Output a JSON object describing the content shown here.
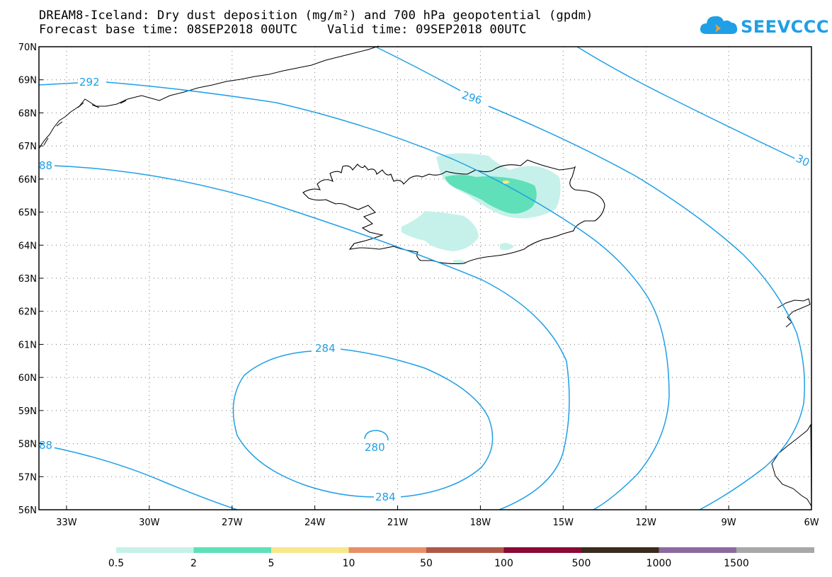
{
  "title": {
    "line1": "DREAM8-Iceland: Dry dust deposition (mg/m²) and 700 hPa geopotential (gpdm)",
    "line2": "Forecast base time: 08SEP2018 00UTC    Valid time: 09SEP2018 00UTC"
  },
  "logo": {
    "text": "SEEVCCC",
    "icon": "cloud-arrow-icon",
    "color": "#1f9fe6"
  },
  "map": {
    "projection": "lat-lon",
    "lon_range": [
      -34,
      -6
    ],
    "lat_range": [
      56,
      70
    ],
    "lat_ticks": [
      "70N",
      "69N",
      "68N",
      "67N",
      "66N",
      "65N",
      "64N",
      "63N",
      "62N",
      "61N",
      "60N",
      "59N",
      "58N",
      "57N",
      "56N"
    ],
    "lon_ticks": [
      "33W",
      "30W",
      "27W",
      "24W",
      "21W",
      "18W",
      "15W",
      "12W",
      "9W",
      "6W"
    ],
    "grid": "dotted",
    "contour_color": "#1f9fe6",
    "contour_labels": [
      "292",
      "296",
      "30",
      "88",
      "284",
      "280",
      "284",
      "88"
    ]
  },
  "legend": {
    "labels": [
      "0.5",
      "2",
      "5",
      "10",
      "50",
      "100",
      "500",
      "1000",
      "1500"
    ],
    "colors": [
      "#c6f1ea",
      "#5fe0b8",
      "#f7e88a",
      "#e98f68",
      "#b05848",
      "#8a0a34",
      "#3b2b1d",
      "#8c6aa0",
      "#a8a8a8"
    ]
  }
}
